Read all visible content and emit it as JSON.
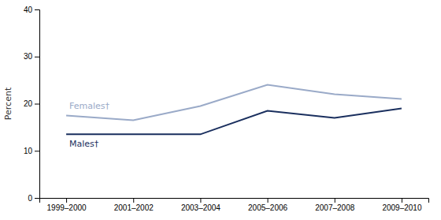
{
  "chart_data": {
    "type": "line",
    "ylabel": "Percent",
    "categories": [
      "1999–2000",
      "2001–2002",
      "2003–2004",
      "2005–2006",
      "2007–2008",
      "2009–2010"
    ],
    "series": [
      {
        "name": "Females†",
        "color": "#9aaac8",
        "values": [
          17.5,
          16.5,
          19.5,
          24.0,
          22.0,
          21.0
        ]
      },
      {
        "name": "Males†",
        "color": "#1a2f5e",
        "values": [
          13.5,
          13.5,
          13.5,
          18.5,
          17.0,
          19.0
        ]
      }
    ],
    "ylim": [
      0,
      40
    ],
    "yticks": [
      0,
      10,
      20,
      30,
      40
    ],
    "grid": false
  }
}
